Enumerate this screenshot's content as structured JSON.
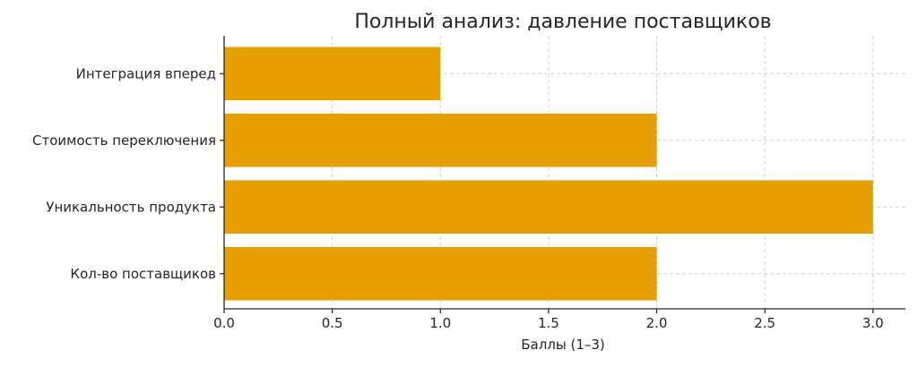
{
  "chart_data": {
    "type": "bar",
    "orientation": "horizontal",
    "title": "Полный анализ: давление поставщиков",
    "xlabel": "Баллы (1–3)",
    "ylabel": "",
    "categories": [
      "Кол-во поставщиков",
      "Уникальность продукта",
      "Стоимость переключения",
      "Интеграция вперед"
    ],
    "values": [
      2,
      3,
      2,
      1
    ],
    "xlim": [
      0,
      3.15
    ],
    "xticks": [
      "0.0",
      "0.5",
      "1.0",
      "1.5",
      "2.0",
      "2.5",
      "3.0"
    ],
    "grid": true,
    "bar_color": "#E69F00"
  }
}
